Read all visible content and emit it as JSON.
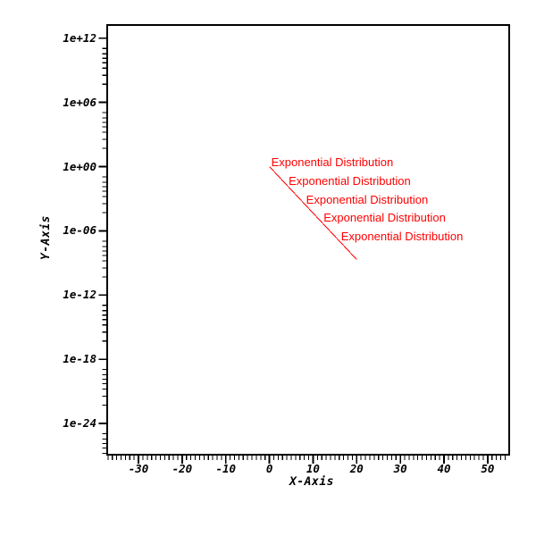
{
  "colors": {
    "background": "#ffffff",
    "axis": "#000000",
    "curve": "#ff0000"
  },
  "chart_data": {
    "type": "line",
    "title": "",
    "xlabel": "X-Axis",
    "ylabel": "Y-Axis",
    "xscale": "linear",
    "yscale": "log",
    "xlim": [
      -37.2,
      54.9
    ],
    "ylim_log10": [
      -26.9,
      13.2
    ],
    "grid": false,
    "legend_position": "none",
    "x_major_ticks": [
      -30,
      -20,
      -10,
      0,
      10,
      20,
      30,
      40,
      50
    ],
    "x_tick_labels": [
      "-30",
      "-20",
      "-10",
      "0",
      "10",
      "20",
      "30",
      "40",
      "50"
    ],
    "x_minor_tick_step": 1,
    "y_major_ticks_log10": [
      12,
      6,
      0,
      -6,
      -12,
      -18,
      -24
    ],
    "y_tick_labels": [
      "1e+12",
      "1e+06",
      "1e+00",
      "1e-06",
      "1e-12",
      "1e-18",
      "1e-24"
    ],
    "series": [
      {
        "name": "Exponential Distribution",
        "color": "#ff0000",
        "style": "solid",
        "x": [
          0,
          20
        ],
        "y": [
          1.0,
          2.1e-09
        ]
      }
    ],
    "annotations": [
      {
        "text": "Exponential Distribution",
        "color": "#ff0000",
        "x": 0,
        "y": 1.0
      },
      {
        "text": "Exponential Distribution",
        "color": "#ff0000",
        "x": 4,
        "y": 0.018
      },
      {
        "text": "Exponential Distribution",
        "color": "#ff0000",
        "x": 8,
        "y": 0.00034
      },
      {
        "text": "Exponential Distribution",
        "color": "#ff0000",
        "x": 12,
        "y": 6.1e-06
      },
      {
        "text": "Exponential Distribution",
        "color": "#ff0000",
        "x": 16,
        "y": 1.1e-07
      }
    ]
  }
}
